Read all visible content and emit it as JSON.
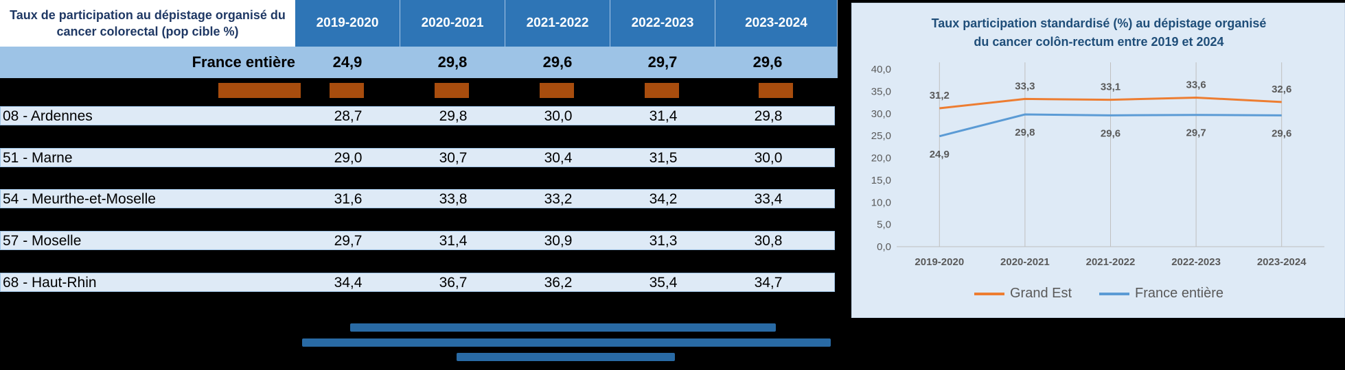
{
  "table": {
    "title": "Taux de participation au dépistage organisé du cancer colorectal (pop cible %)",
    "years": [
      "2019-2020",
      "2020-2021",
      "2021-2022",
      "2022-2023",
      "2023-2024"
    ],
    "france": {
      "label": "France entière",
      "values": [
        "24,9",
        "29,8",
        "29,6",
        "29,7",
        "29,6"
      ]
    },
    "rows": [
      {
        "label": "08 - Ardennes",
        "values": [
          "28,7",
          "29,8",
          "30,0",
          "31,4",
          "29,8"
        ]
      },
      {
        "label": "51 - Marne",
        "values": [
          "29,0",
          "30,7",
          "30,4",
          "31,5",
          "30,0"
        ]
      },
      {
        "label": "54 - Meurthe-et-Moselle",
        "values": [
          "31,6",
          "33,8",
          "33,2",
          "34,2",
          "33,4"
        ]
      },
      {
        "label": "57 - Moselle",
        "values": [
          "29,7",
          "31,4",
          "30,9",
          "31,3",
          "30,8"
        ]
      },
      {
        "label": "68 - Haut-Rhin",
        "values": [
          "34,4",
          "36,7",
          "36,2",
          "35,4",
          "34,7"
        ]
      }
    ]
  },
  "chart_data": {
    "type": "line",
    "title_line1": "Taux participation standardisé (%) au dépistage organisé",
    "title_line2": "du cancer colôn-rectum entre 2019 et 2024",
    "categories": [
      "2019-2020",
      "2020-2021",
      "2021-2022",
      "2022-2023",
      "2023-2024"
    ],
    "ylim": [
      0,
      40
    ],
    "yticks": [
      "0,0",
      "5,0",
      "10,0",
      "15,0",
      "20,0",
      "25,0",
      "30,0",
      "35,0",
      "40,0"
    ],
    "series": [
      {
        "name": "Grand Est",
        "color": "#ed7d31",
        "values": [
          31.2,
          33.3,
          33.1,
          33.6,
          32.6
        ],
        "labels": [
          "31,2",
          "33,3",
          "33,1",
          "33,6",
          "32,6"
        ]
      },
      {
        "name": "France entière",
        "color": "#5b9bd5",
        "values": [
          24.9,
          29.8,
          29.6,
          29.7,
          29.6
        ],
        "labels": [
          "24,9",
          "29,8",
          "29,6",
          "29,7",
          "29,6"
        ]
      }
    ],
    "legend_position": "bottom"
  }
}
